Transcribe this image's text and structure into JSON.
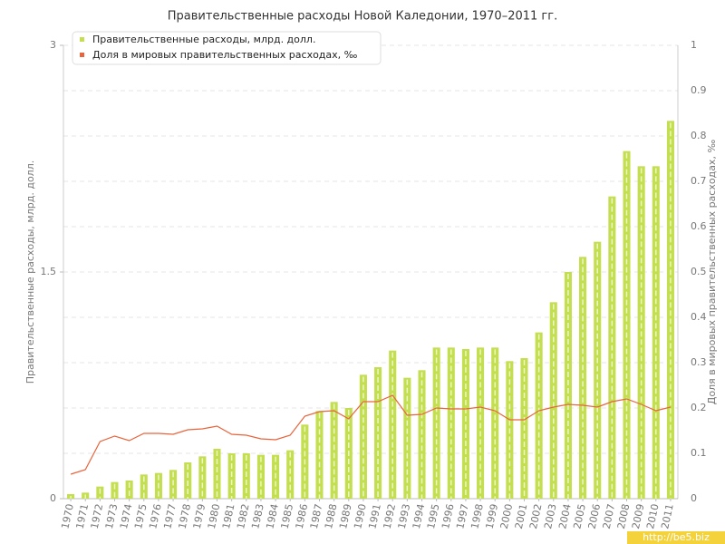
{
  "chart_data": {
    "type": "bar-line",
    "title": "Правительственные расходы Новой Каледонии, 1970–2011 гг.",
    "y_label": "Правительственные расходы, млрд. долл.",
    "y2_label": "Доля в мировых правительственных расходах, ‰",
    "watermark": "http://be5.biz",
    "categories": [
      "1970",
      "1971",
      "1972",
      "1973",
      "1974",
      "1975",
      "1976",
      "1977",
      "1978",
      "1979",
      "1980",
      "1981",
      "1982",
      "1983",
      "1984",
      "1985",
      "1986",
      "1987",
      "1988",
      "1989",
      "1990",
      "1991",
      "1992",
      "1993",
      "1994",
      "1995",
      "1996",
      "1997",
      "1998",
      "1999",
      "2000",
      "2001",
      "2002",
      "2003",
      "2004",
      "2005",
      "2006",
      "2007",
      "2008",
      "2009",
      "2010",
      "2011"
    ],
    "series": [
      {
        "name": "Правительственные расходы, млрд. долл.",
        "color": "#c3de4f",
        "kind": "bar",
        "axis": "y",
        "values": [
          0.03,
          0.04,
          0.08,
          0.11,
          0.12,
          0.16,
          0.17,
          0.19,
          0.24,
          0.28,
          0.33,
          0.3,
          0.3,
          0.29,
          0.29,
          0.32,
          0.49,
          0.58,
          0.64,
          0.6,
          0.82,
          0.87,
          0.98,
          0.8,
          0.85,
          1.0,
          1.0,
          0.99,
          1.0,
          1.0,
          0.91,
          0.93,
          1.1,
          1.3,
          1.5,
          1.6,
          1.7,
          2.0,
          2.3,
          2.2,
          2.2,
          2.5
        ]
      },
      {
        "name": "Доля в мировых правительственных расходах, ‰",
        "color": "#e8643c",
        "kind": "line",
        "axis": "y2",
        "values": [
          0.054,
          0.064,
          0.126,
          0.138,
          0.128,
          0.144,
          0.144,
          0.142,
          0.152,
          0.154,
          0.16,
          0.142,
          0.14,
          0.132,
          0.13,
          0.14,
          0.182,
          0.192,
          0.194,
          0.176,
          0.214,
          0.214,
          0.228,
          0.184,
          0.186,
          0.2,
          0.198,
          0.198,
          0.202,
          0.194,
          0.174,
          0.174,
          0.194,
          0.202,
          0.208,
          0.206,
          0.202,
          0.214,
          0.22,
          0.208,
          0.194,
          0.202
        ]
      }
    ],
    "ylim": [
      0,
      3
    ],
    "yticks": [
      0,
      1.5,
      3
    ],
    "y2lim": [
      0,
      1
    ],
    "y2ticks": [
      0,
      0.1,
      0.2,
      0.3,
      0.4,
      0.5,
      0.6,
      0.7,
      0.8,
      0.9,
      1
    ],
    "grid": true,
    "legend": "top-left"
  }
}
